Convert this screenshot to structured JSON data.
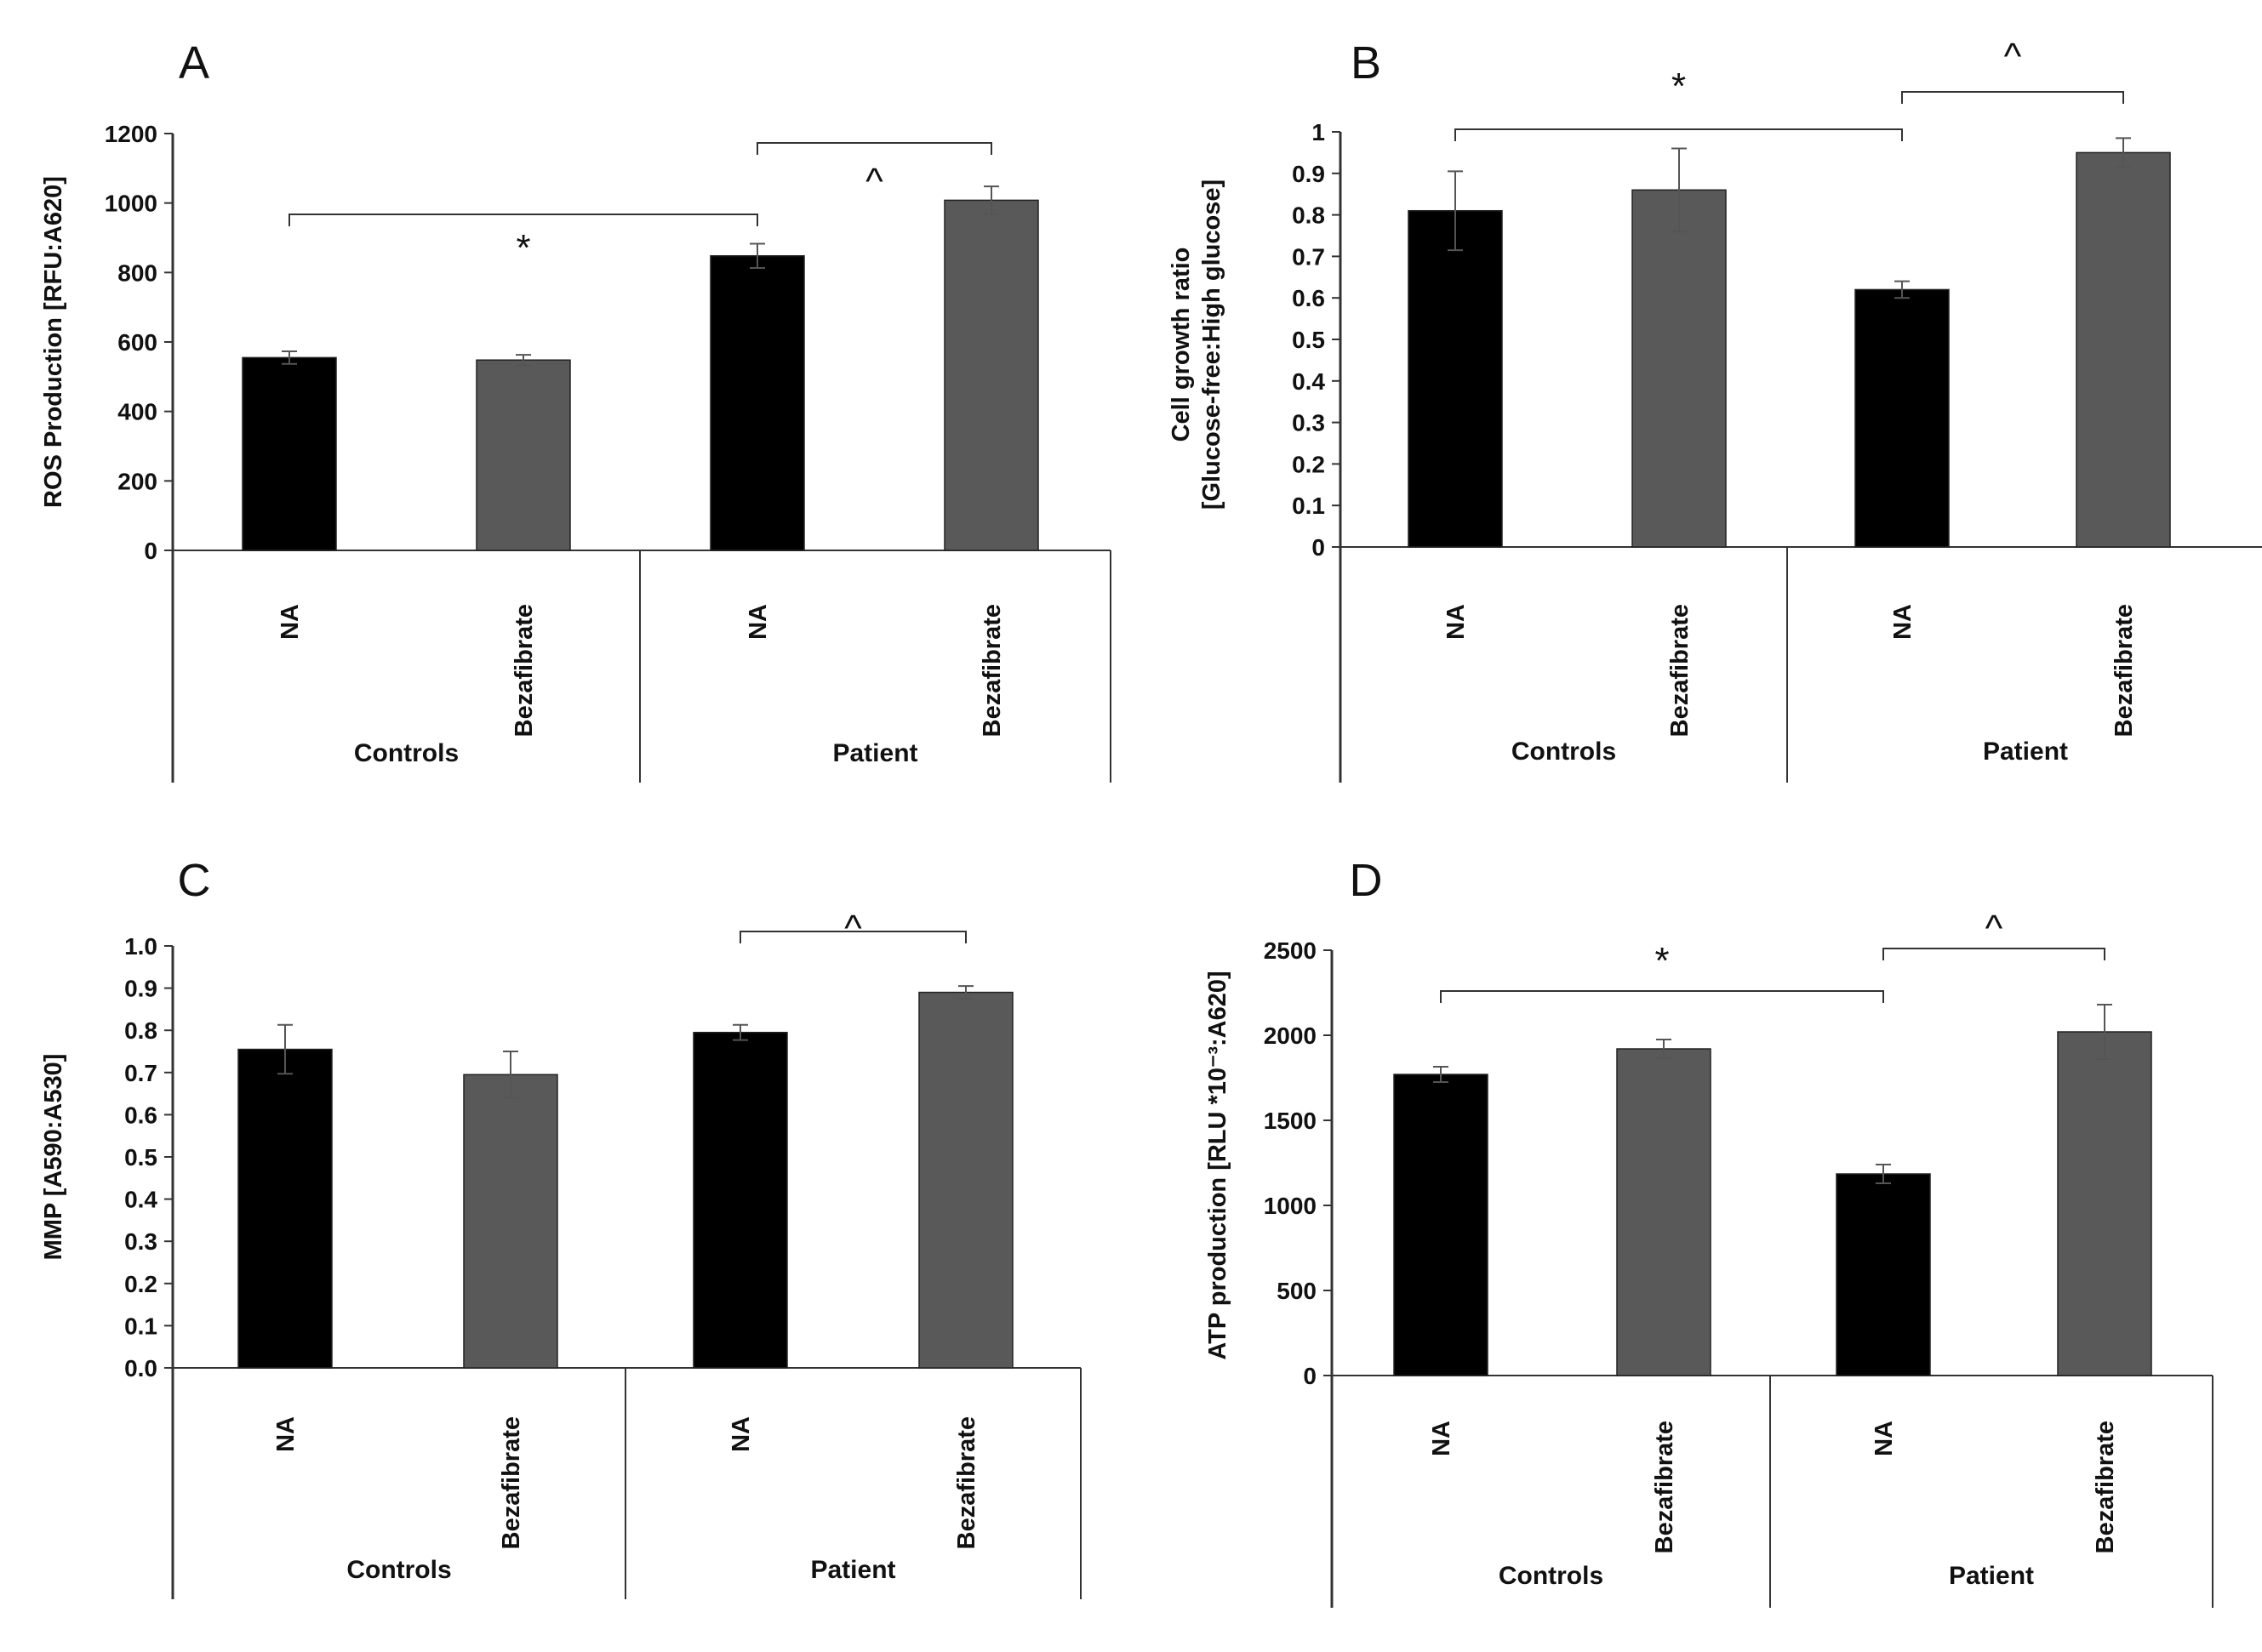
{
  "figure": {
    "colors": {
      "NA": "#000000",
      "Bezafibrate": "#595959",
      "axis": "#333333"
    }
  },
  "chart_data": [
    {
      "panel": "A",
      "type": "bar",
      "ylabel": "ROS Production [RFU:A620]",
      "ylim": [
        0,
        1200
      ],
      "yticks": [
        "0",
        "200",
        "400",
        "600",
        "800",
        "1000",
        "1200"
      ],
      "groups": [
        "Controls",
        "Patient"
      ],
      "categories": [
        "NA",
        "Bezafibrate",
        "NA",
        "Bezafibrate"
      ],
      "values": [
        555,
        548,
        848,
        1008
      ],
      "errors": [
        18,
        15,
        35,
        40
      ],
      "significance": [
        {
          "label": "*",
          "from": 0,
          "to": 2
        },
        {
          "label": "^",
          "from": 2,
          "to": 3
        }
      ]
    },
    {
      "panel": "B",
      "type": "bar",
      "ylabel": "Cell growth ratio\n[Glucose-free:High glucose]",
      "ylim": [
        0,
        1
      ],
      "yticks": [
        "0",
        "0.1",
        "0.2",
        "0.3",
        "0.4",
        "0.5",
        "0.6",
        "0.7",
        "0.8",
        "0.9",
        "1"
      ],
      "groups": [
        "Controls",
        "Patient"
      ],
      "categories": [
        "NA",
        "Bezafibrate",
        "NA",
        "Bezafibrate"
      ],
      "values": [
        0.81,
        0.86,
        0.62,
        0.95
      ],
      "errors": [
        0.095,
        0.1,
        0.02,
        0.035
      ],
      "significance": [
        {
          "label": "*",
          "from": 0,
          "to": 2
        },
        {
          "label": "^",
          "from": 2,
          "to": 3
        }
      ]
    },
    {
      "panel": "C",
      "type": "bar",
      "ylabel": "MMP [A590:A530]",
      "ylim": [
        0,
        1.0
      ],
      "yticks": [
        "0.0",
        "0.1",
        "0.2",
        "0.3",
        "0.4",
        "0.5",
        "0.6",
        "0.7",
        "0.8",
        "0.9",
        "1.0"
      ],
      "groups": [
        "Controls",
        "Patient"
      ],
      "categories": [
        "NA",
        "Bezafibrate",
        "NA",
        "Bezafibrate"
      ],
      "values": [
        0.755,
        0.695,
        0.795,
        0.89
      ],
      "errors": [
        0.058,
        0.055,
        0.018,
        0.015
      ],
      "significance": [
        {
          "label": "^",
          "from": 2,
          "to": 3
        }
      ]
    },
    {
      "panel": "D",
      "type": "bar",
      "ylabel": "ATP production [RLU *10⁻³:A620]",
      "ylim": [
        0,
        2500
      ],
      "yticks": [
        "0",
        "500",
        "1000",
        "1500",
        "2000",
        "2500"
      ],
      "groups": [
        "Controls",
        "Patient"
      ],
      "categories": [
        "NA",
        "Bezafibrate",
        "NA",
        "Bezafibrate"
      ],
      "values": [
        1770,
        1920,
        1185,
        2020
      ],
      "errors": [
        45,
        55,
        55,
        160
      ],
      "significance": [
        {
          "label": "*",
          "from": 0,
          "to": 2
        },
        {
          "label": "^",
          "from": 2,
          "to": 3
        }
      ]
    }
  ]
}
